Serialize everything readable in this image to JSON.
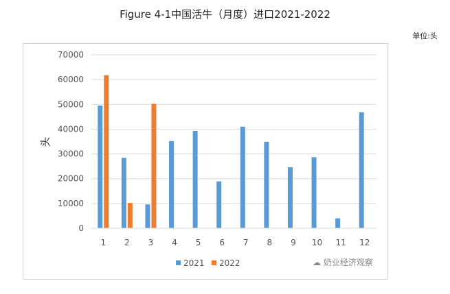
{
  "title": "Figure 4-1中国活牛（月度）进口2021-2022",
  "unit": "单位:头",
  "watermark": "奶业经济观察",
  "chart_data": {
    "type": "bar",
    "categories": [
      "1",
      "2",
      "3",
      "4",
      "5",
      "6",
      "7",
      "8",
      "9",
      "10",
      "11",
      "12"
    ],
    "series": [
      {
        "name": "2021",
        "color": "#5B9BD5",
        "values": [
          49500,
          28400,
          9600,
          35200,
          39300,
          18900,
          41000,
          34900,
          24600,
          28700,
          4000,
          46800
        ]
      },
      {
        "name": "2022",
        "color": "#ED7D31",
        "values": [
          61800,
          10200,
          50200,
          null,
          null,
          null,
          null,
          null,
          null,
          null,
          null,
          null
        ]
      }
    ],
    "ylabel": "头",
    "ylim": [
      0,
      70000
    ],
    "yticks": [
      "0",
      "10000",
      "20000",
      "30000",
      "40000",
      "50000",
      "60000",
      "70000"
    ],
    "grid": true,
    "legend": "bottom"
  }
}
